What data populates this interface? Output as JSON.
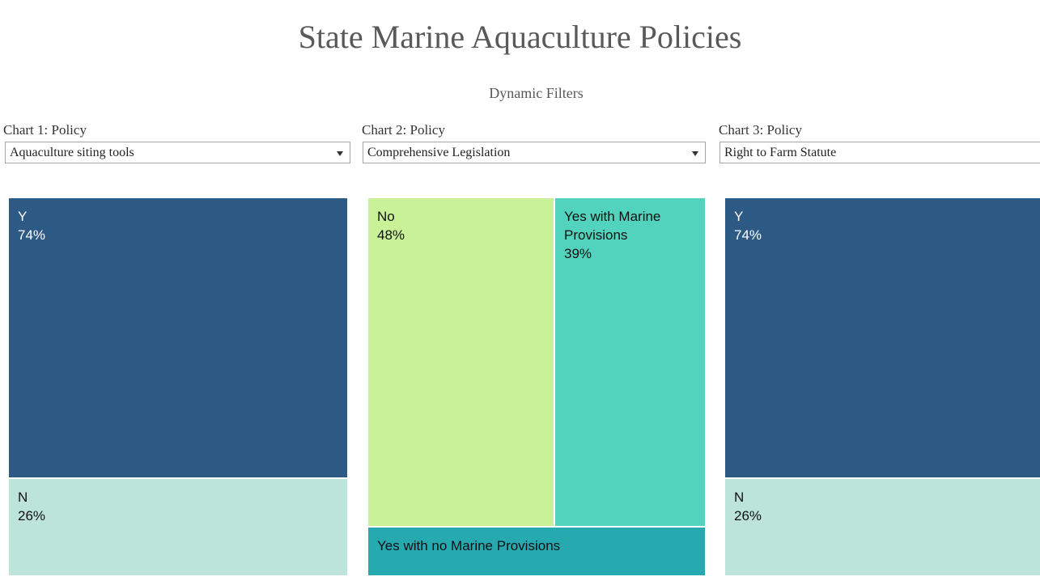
{
  "header": {
    "title": "State Marine Aquaculture Policies",
    "subtitle": "Dynamic Filters"
  },
  "filters": [
    {
      "label": "Chart 1: Policy",
      "selected": "Aquaculture siting tools"
    },
    {
      "label": "Chart 2: Policy",
      "selected": "Comprehensive Legislation"
    },
    {
      "label": "Chart 3: Policy",
      "selected": "Right to Farm Statute"
    }
  ],
  "colors": {
    "dark_blue": "#2d5985",
    "light_mint": "#bce4da",
    "light_green": "#c9f197",
    "teal_light": "#52d3bd",
    "teal_dark": "#27a9b0"
  },
  "chart_data": [
    {
      "type": "treemap",
      "title": "Aquaculture siting tools",
      "items": [
        {
          "label": "Y",
          "value": 74,
          "value_label": "74%",
          "color": "#2d5985",
          "text_color": "#ffffff"
        },
        {
          "label": "N",
          "value": 26,
          "value_label": "26%",
          "color": "#bce4da",
          "text_color": "#111111"
        }
      ]
    },
    {
      "type": "treemap",
      "title": "Comprehensive Legislation",
      "items": [
        {
          "label": "No",
          "value": 48,
          "value_label": "48%",
          "color": "#c9f197",
          "text_color": "#111111"
        },
        {
          "label": "Yes with Marine Provisions",
          "value": 39,
          "value_label": "39%",
          "color": "#52d3bd",
          "text_color": "#111111"
        },
        {
          "label": "Yes with no Marine Provisions",
          "value": 13,
          "value_label": "",
          "color": "#27a9b0",
          "text_color": "#111111"
        }
      ]
    },
    {
      "type": "treemap",
      "title": "Right to Farm Statute",
      "items": [
        {
          "label": "Y",
          "value": 74,
          "value_label": "74%",
          "color": "#2d5985",
          "text_color": "#ffffff"
        },
        {
          "label": "N",
          "value": 26,
          "value_label": "26%",
          "color": "#bce4da",
          "text_color": "#111111"
        }
      ]
    }
  ]
}
